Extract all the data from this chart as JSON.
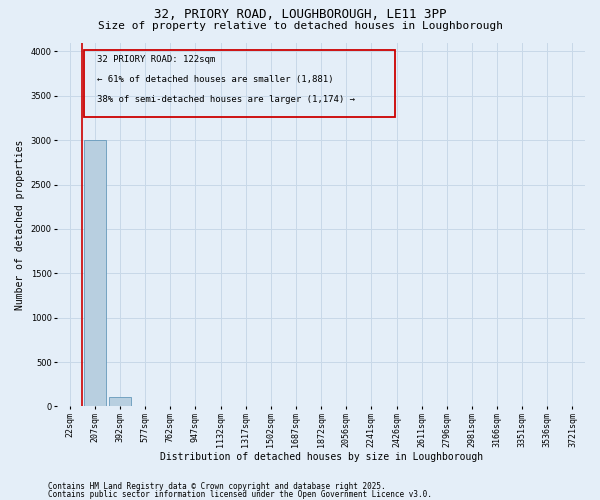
{
  "title1": "32, PRIORY ROAD, LOUGHBOROUGH, LE11 3PP",
  "title2": "Size of property relative to detached houses in Loughborough",
  "xlabel": "Distribution of detached houses by size in Loughborough",
  "ylabel": "Number of detached properties",
  "categories": [
    "22sqm",
    "207sqm",
    "392sqm",
    "577sqm",
    "762sqm",
    "947sqm",
    "1132sqm",
    "1317sqm",
    "1502sqm",
    "1687sqm",
    "1872sqm",
    "2056sqm",
    "2241sqm",
    "2426sqm",
    "2611sqm",
    "2796sqm",
    "2981sqm",
    "3166sqm",
    "3351sqm",
    "3536sqm",
    "3721sqm"
  ],
  "values": [
    0,
    3000,
    110,
    5,
    3,
    2,
    2,
    1,
    1,
    1,
    1,
    1,
    1,
    0,
    0,
    0,
    0,
    0,
    0,
    0,
    0
  ],
  "bar_color": "#b8cfe0",
  "bar_edge_color": "#6699bb",
  "grid_color": "#c8d8e8",
  "background_color": "#e4eef8",
  "annotation_box_color": "#cc0000",
  "vline_color": "#cc0000",
  "property_size_label": "32 PRIORY ROAD: 122sqm",
  "annotation_line1": "← 61% of detached houses are smaller (1,881)",
  "annotation_line2": "38% of semi-detached houses are larger (1,174) →",
  "vline_x_data": 0.5,
  "ylim": [
    0,
    4100
  ],
  "yticks": [
    0,
    500,
    1000,
    1500,
    2000,
    2500,
    3000,
    3500,
    4000
  ],
  "footer1": "Contains HM Land Registry data © Crown copyright and database right 2025.",
  "footer2": "Contains public sector information licensed under the Open Government Licence v3.0.",
  "title_fontsize": 9,
  "subtitle_fontsize": 8,
  "annot_fontsize": 6.5,
  "ylabel_fontsize": 7,
  "xlabel_fontsize": 7,
  "tick_fontsize": 6,
  "footer_fontsize": 5.5
}
